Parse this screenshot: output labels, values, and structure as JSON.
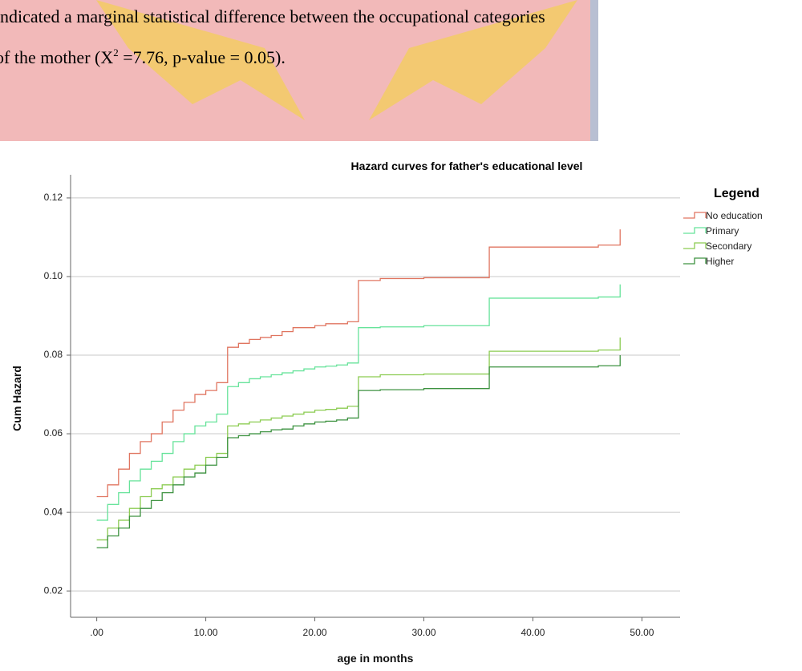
{
  "document": {
    "lines": [
      {
        "text": "ndicated a marginal statistical difference between the occupational categories"
      },
      {
        "text": "of the mother (X",
        "superscript": "2",
        "rest": " =7.76, p-value = 0.05)."
      }
    ]
  },
  "chart_data": {
    "type": "step",
    "title": "Hazard curves for father's educational level",
    "x_label": "age in months",
    "y_label": "Cum Hazard",
    "legend_title": "Legend",
    "legend_position": "right",
    "grid": true,
    "x": [
      0,
      1,
      2,
      3,
      4,
      5,
      6,
      7,
      8,
      9,
      10,
      11,
      12,
      13,
      14,
      15,
      16,
      17,
      18,
      19,
      20,
      21,
      22,
      23,
      24,
      26,
      30,
      36,
      46,
      48
    ],
    "series": [
      {
        "name": "No education",
        "color": "#e07560",
        "values": [
          0.044,
          0.047,
          0.051,
          0.055,
          0.058,
          0.06,
          0.063,
          0.066,
          0.068,
          0.07,
          0.071,
          0.073,
          0.082,
          0.083,
          0.084,
          0.0845,
          0.085,
          0.086,
          0.087,
          0.087,
          0.0875,
          0.088,
          0.088,
          0.0885,
          0.099,
          0.0995,
          0.0997,
          0.1075,
          0.108,
          0.112
        ]
      },
      {
        "name": "Primary",
        "color": "#66e39a",
        "values": [
          0.038,
          0.042,
          0.045,
          0.048,
          0.051,
          0.053,
          0.055,
          0.058,
          0.06,
          0.062,
          0.063,
          0.065,
          0.072,
          0.073,
          0.074,
          0.0745,
          0.075,
          0.0755,
          0.076,
          0.0765,
          0.077,
          0.0772,
          0.0775,
          0.078,
          0.087,
          0.0872,
          0.0875,
          0.0945,
          0.0948,
          0.098
        ]
      },
      {
        "name": "Secondary",
        "color": "#8ccc52",
        "values": [
          0.033,
          0.036,
          0.038,
          0.041,
          0.044,
          0.046,
          0.047,
          0.049,
          0.051,
          0.052,
          0.054,
          0.055,
          0.062,
          0.0625,
          0.063,
          0.0635,
          0.064,
          0.0645,
          0.065,
          0.0655,
          0.066,
          0.0662,
          0.0665,
          0.067,
          0.0745,
          0.075,
          0.0752,
          0.081,
          0.0813,
          0.0845
        ]
      },
      {
        "name": "Higher",
        "color": "#3d9240",
        "values": [
          0.031,
          0.034,
          0.036,
          0.039,
          0.041,
          0.043,
          0.045,
          0.047,
          0.049,
          0.05,
          0.052,
          0.054,
          0.059,
          0.0595,
          0.06,
          0.0605,
          0.061,
          0.0612,
          0.062,
          0.0625,
          0.063,
          0.0632,
          0.0635,
          0.064,
          0.071,
          0.0712,
          0.0715,
          0.077,
          0.0773,
          0.08
        ]
      }
    ],
    "xlim": [
      -2.4,
      53.5
    ],
    "xticks": [
      {
        "value": 0,
        "label": ".00"
      },
      {
        "value": 10,
        "label": "10.00"
      },
      {
        "value": 20,
        "label": "20.00"
      },
      {
        "value": 30,
        "label": "30.00"
      },
      {
        "value": 40,
        "label": "40.00"
      },
      {
        "value": 50,
        "label": "50.00"
      }
    ],
    "ylim": [
      0.0133,
      0.1259
    ],
    "yticks": [
      0.02,
      0.04,
      0.06,
      0.08,
      {
        "value": 0.1,
        "label": "0.10"
      },
      0.12
    ]
  }
}
